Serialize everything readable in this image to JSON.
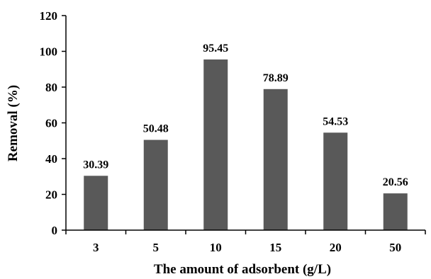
{
  "chart_data": {
    "type": "bar",
    "title": "",
    "xlabel": "The amount of adsorbent (g/L)",
    "ylabel": "Removal (%)",
    "categories": [
      "3",
      "5",
      "10",
      "15",
      "20",
      "50"
    ],
    "values": [
      30.39,
      50.48,
      95.45,
      78.89,
      54.53,
      20.56
    ],
    "value_labels": [
      "30.39",
      "50.48",
      "95.45",
      "78.89",
      "54.53",
      "20.56"
    ],
    "ylim": [
      0,
      120
    ],
    "yticks": [
      0,
      20,
      40,
      60,
      80,
      100,
      120
    ],
    "grid": false,
    "legend": "none",
    "bar_color": "#595959"
  }
}
